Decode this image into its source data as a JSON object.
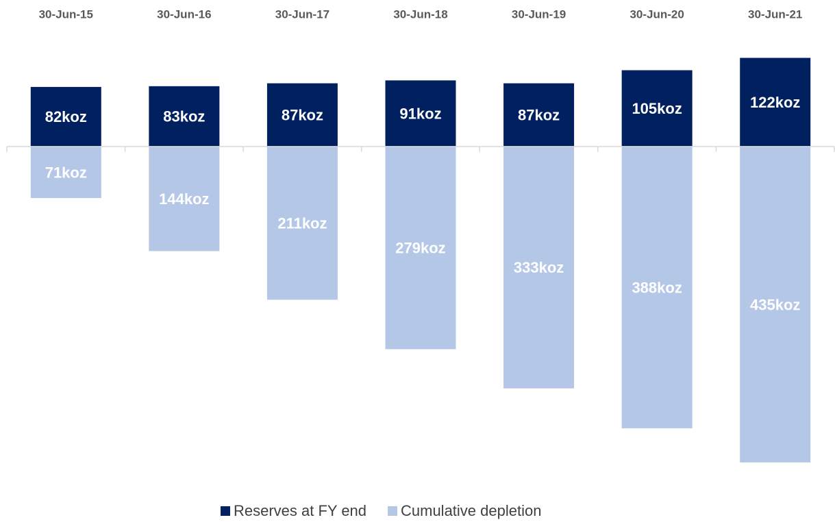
{
  "chart_data": {
    "type": "bar",
    "categories": [
      "30-Jun-15",
      "30-Jun-16",
      "30-Jun-17",
      "30-Jun-18",
      "30-Jun-19",
      "30-Jun-20",
      "30-Jun-21"
    ],
    "series": [
      {
        "name": "Reserves at FY end",
        "color": "#002060",
        "values": [
          82,
          83,
          87,
          91,
          87,
          105,
          122
        ],
        "value_labels": [
          "82koz",
          "83koz",
          "87koz",
          "91koz",
          "87koz",
          "105koz",
          "122koz"
        ]
      },
      {
        "name": "Cumulative depletion",
        "color": "#b4c7e7",
        "values": [
          -71,
          -144,
          -211,
          -279,
          -333,
          -388,
          -435
        ],
        "value_labels": [
          "71koz",
          "144koz",
          "211koz",
          "279koz",
          "333koz",
          "388koz",
          "435koz"
        ]
      }
    ],
    "ylim": [
      -450,
      130
    ],
    "legend": "bottom"
  }
}
